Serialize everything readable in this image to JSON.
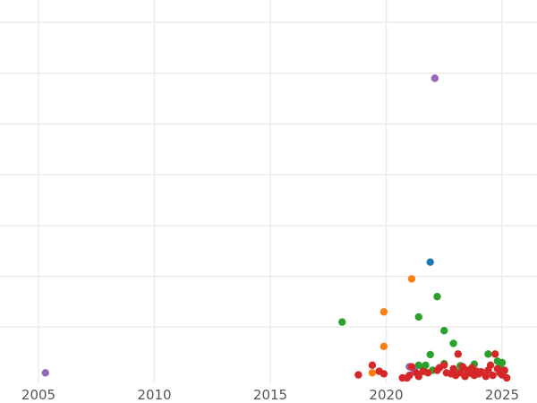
{
  "chart_data": {
    "type": "scatter",
    "title": "",
    "xlabel": "",
    "ylabel": "",
    "xlim": [
      2005.0,
      2026.2
    ],
    "ylim": [
      0,
      8
    ],
    "x_ticks": [
      2005,
      2010,
      2015,
      2020,
      2025
    ],
    "x_tick_labels": [
      "2005",
      "2010",
      "2015",
      "2020",
      "2025"
    ],
    "y_gridlines": [
      1,
      2,
      3,
      4,
      5,
      6,
      7,
      8
    ],
    "y_tick_labels_visible": false,
    "grid": true,
    "legend": "none",
    "series": [
      {
        "color": "#1f77b4",
        "points": [
          [
            2021.9,
            2.28
          ]
        ]
      },
      {
        "color": "#ff7f0e",
        "points": [
          [
            2021.1,
            1.95
          ],
          [
            2019.9,
            1.3
          ],
          [
            2019.9,
            0.62
          ],
          [
            2019.4,
            0.1
          ]
        ]
      },
      {
        "color": "#2ca02c",
        "points": [
          [
            2018.1,
            1.1
          ],
          [
            2021.4,
            1.2
          ],
          [
            2022.2,
            1.6
          ],
          [
            2022.5,
            0.93
          ],
          [
            2022.9,
            0.68
          ],
          [
            2021.9,
            0.46
          ],
          [
            2021.4,
            0.25
          ],
          [
            2021.7,
            0.25
          ],
          [
            2022.5,
            0.28
          ],
          [
            2023.2,
            0.24
          ],
          [
            2023.8,
            0.27
          ],
          [
            2024.4,
            0.47
          ],
          [
            2024.8,
            0.33
          ],
          [
            2025.0,
            0.3
          ],
          [
            2024.9,
            0.2
          ],
          [
            2021.6,
            0.18
          ],
          [
            2022.0,
            0.15
          ],
          [
            2023.0,
            0.12
          ],
          [
            2023.7,
            0.08
          ],
          [
            2025.1,
            0.14
          ]
        ]
      },
      {
        "color": "#9467bd",
        "points": [
          [
            2022.1,
            5.9
          ],
          [
            2005.3,
            0.1
          ],
          [
            2021.0,
            0.22
          ],
          [
            2021.2,
            0.15
          ]
        ]
      },
      {
        "color": "#d62728",
        "points": [
          [
            2018.8,
            0.06
          ],
          [
            2019.4,
            0.25
          ],
          [
            2019.7,
            0.13
          ],
          [
            2019.9,
            0.08
          ],
          [
            2020.7,
            0.0
          ],
          [
            2020.9,
            0.0
          ],
          [
            2021.0,
            0.05
          ],
          [
            2021.1,
            0.22
          ],
          [
            2021.3,
            0.1
          ],
          [
            2021.4,
            0.03
          ],
          [
            2021.6,
            0.13
          ],
          [
            2021.8,
            0.1
          ],
          [
            2022.2,
            0.15
          ],
          [
            2022.3,
            0.2
          ],
          [
            2022.5,
            0.25
          ],
          [
            2022.6,
            0.1
          ],
          [
            2022.8,
            0.08
          ],
          [
            2022.9,
            0.18
          ],
          [
            2023.0,
            0.05
          ],
          [
            2023.1,
            0.47
          ],
          [
            2023.2,
            0.1
          ],
          [
            2023.3,
            0.22
          ],
          [
            2023.4,
            0.03
          ],
          [
            2023.5,
            0.15
          ],
          [
            2023.6,
            0.1
          ],
          [
            2023.7,
            0.2
          ],
          [
            2023.8,
            0.05
          ],
          [
            2023.9,
            0.13
          ],
          [
            2024.0,
            0.08
          ],
          [
            2024.1,
            0.12
          ],
          [
            2024.3,
            0.03
          ],
          [
            2024.4,
            0.15
          ],
          [
            2024.5,
            0.25
          ],
          [
            2024.6,
            0.05
          ],
          [
            2024.7,
            0.47
          ],
          [
            2024.8,
            0.18
          ],
          [
            2024.9,
            0.1
          ],
          [
            2025.0,
            0.06
          ],
          [
            2025.1,
            0.15
          ],
          [
            2025.2,
            0.0
          ]
        ]
      }
    ]
  }
}
